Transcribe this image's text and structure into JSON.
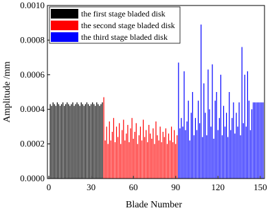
{
  "chart_data": {
    "type": "bar",
    "x_label": "Blade Number",
    "y_label": "Amplitude /mm",
    "xlim": [
      -1,
      153
    ],
    "xticks": [
      0,
      30,
      60,
      90,
      120,
      150
    ],
    "ylim": [
      0,
      0.001
    ],
    "yticks": [
      {
        "value": 0,
        "label": "0.0000"
      },
      {
        "value": 0.0002,
        "label": "0.0002"
      },
      {
        "value": 0.0004,
        "label": "0.0004"
      },
      {
        "value": 0.0006,
        "label": "0.0006"
      },
      {
        "value": 0.0008,
        "label": "0.0008"
      },
      {
        "value": 0.001,
        "label": "0.0010"
      }
    ],
    "legend": "upper left",
    "series": [
      {
        "name": "the first stage bladed disk",
        "color": "#000000",
        "x": [
          1,
          2,
          3,
          4,
          5,
          6,
          7,
          8,
          9,
          10,
          11,
          12,
          13,
          14,
          15,
          16,
          17,
          18,
          19,
          20,
          21,
          22,
          23,
          24,
          25,
          26,
          27,
          28,
          29,
          30,
          31,
          32,
          33,
          34,
          35,
          36,
          37,
          38
        ],
        "values": [
          0.00043,
          0.00042,
          0.00044,
          0.00043,
          0.00042,
          0.00044,
          0.00043,
          0.00042,
          0.00043,
          0.00044,
          0.00042,
          0.00043,
          0.00044,
          0.00043,
          0.00042,
          0.00043,
          0.00044,
          0.00042,
          0.00043,
          0.00044,
          0.00043,
          0.00042,
          0.00044,
          0.00043,
          0.00042,
          0.00043,
          0.00044,
          0.00043,
          0.00042,
          0.00043,
          0.00044,
          0.00043,
          0.00042,
          0.00044,
          0.00043,
          0.00042,
          0.00043,
          0.00044
        ]
      },
      {
        "name": "the second stage bladed disk",
        "color": "#ff0000",
        "x": [
          39,
          40,
          41,
          42,
          43,
          44,
          45,
          46,
          47,
          48,
          49,
          50,
          51,
          52,
          53,
          54,
          55,
          56,
          57,
          58,
          59,
          60,
          61,
          62,
          63,
          64,
          65,
          66,
          67,
          68,
          69,
          70,
          71,
          72,
          73,
          74,
          75,
          76,
          77,
          78,
          79,
          80,
          81,
          82,
          83,
          84,
          85,
          86,
          87,
          88,
          89,
          90,
          91
        ],
        "values": [
          0.00047,
          0.00022,
          0.0003,
          0.0002,
          0.00033,
          0.00022,
          0.00027,
          0.00035,
          0.00021,
          0.0003,
          0.00024,
          0.00032,
          0.0002,
          0.00028,
          0.00034,
          0.00022,
          0.00026,
          0.00031,
          0.00021,
          0.00029,
          0.00035,
          0.00023,
          0.00027,
          0.00032,
          0.0002,
          0.00025,
          0.0003,
          0.00022,
          0.00034,
          0.00024,
          0.00028,
          0.00021,
          0.00031,
          0.00026,
          0.00023,
          0.00029,
          0.0002,
          0.00033,
          0.00025,
          0.00022,
          0.0003,
          0.00021,
          0.00027,
          0.00024,
          0.00029,
          0.0002,
          0.00026,
          0.00022,
          0.0003,
          0.00021,
          0.00028,
          0.0002,
          0.00025
        ]
      },
      {
        "name": "the third stage bladed disk",
        "color": "#0000ff",
        "x": [
          92,
          93,
          94,
          95,
          96,
          97,
          98,
          99,
          100,
          101,
          102,
          103,
          104,
          105,
          106,
          107,
          108,
          109,
          110,
          111,
          112,
          113,
          114,
          115,
          116,
          117,
          118,
          119,
          120,
          121,
          122,
          123,
          124,
          125,
          126,
          127,
          128,
          129,
          130,
          131,
          132,
          133,
          134,
          135,
          136,
          137,
          138,
          139,
          140,
          141,
          142,
          143,
          144,
          145,
          146,
          147,
          148,
          149,
          150,
          151,
          152
        ],
        "values": [
          0.00067,
          0.00029,
          0.00035,
          0.0003,
          0.00062,
          0.00028,
          0.00033,
          0.00045,
          0.00022,
          0.00038,
          0.0005,
          0.00025,
          0.00035,
          0.00028,
          0.00045,
          0.00032,
          0.00089,
          0.00024,
          0.00055,
          0.00038,
          0.00025,
          0.00063,
          0.0004,
          0.0003,
          0.00066,
          0.00023,
          0.00045,
          0.0005,
          0.00028,
          0.00035,
          0.0006,
          0.00025,
          0.00042,
          0.0003,
          0.00038,
          0.00024,
          0.0005,
          0.00028,
          0.00035,
          0.00044,
          0.00026,
          0.00038,
          0.0003,
          0.00044,
          0.00025,
          0.00076,
          0.00032,
          0.0006,
          0.0003,
          0.00062,
          0.00045,
          0.00028,
          0.0004,
          0.00044,
          0.00044,
          0.00044,
          0.00044,
          0.00044,
          0.00044,
          0.00044,
          0.00044
        ]
      }
    ]
  }
}
